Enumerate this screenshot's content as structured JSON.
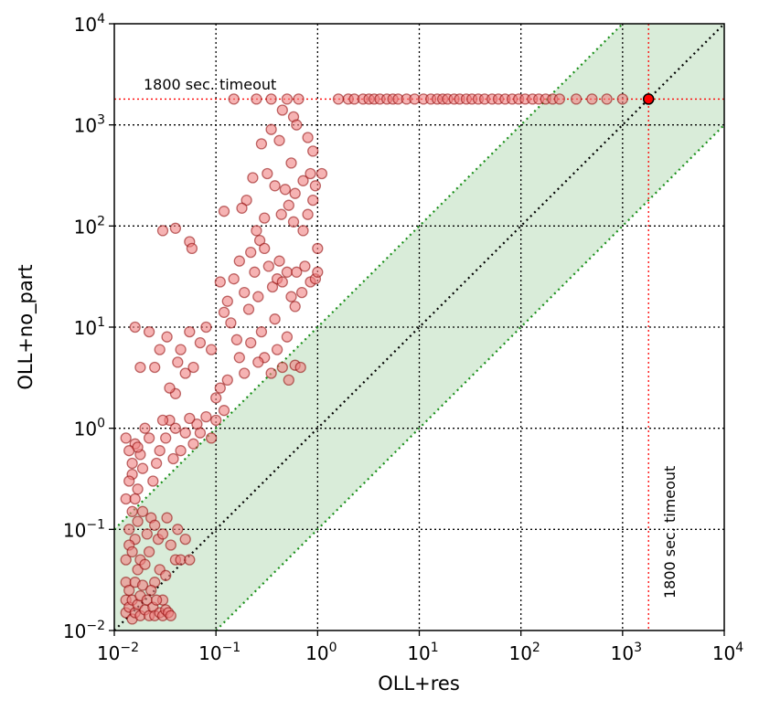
{
  "chart_data": {
    "type": "scatter",
    "title": "",
    "xlabel": "OLL+res",
    "ylabel": "OLL+no_part",
    "x_scale": "log",
    "y_scale": "log",
    "xlim": [
      0.01,
      10000
    ],
    "ylim": [
      0.01,
      10000
    ],
    "grid": true,
    "x_ticks": [
      {
        "base": "10",
        "exp": "−2"
      },
      {
        "base": "10",
        "exp": "−1"
      },
      {
        "base": "10",
        "exp": "0"
      },
      {
        "base": "10",
        "exp": "1"
      },
      {
        "base": "10",
        "exp": "2"
      },
      {
        "base": "10",
        "exp": "3"
      },
      {
        "base": "10",
        "exp": "4"
      }
    ],
    "y_ticks": [
      {
        "base": "10",
        "exp": "−2"
      },
      {
        "base": "10",
        "exp": "−1"
      },
      {
        "base": "10",
        "exp": "0"
      },
      {
        "base": "10",
        "exp": "1"
      },
      {
        "base": "10",
        "exp": "2"
      },
      {
        "base": "10",
        "exp": "3"
      },
      {
        "base": "10",
        "exp": "4"
      }
    ],
    "timeout_value": 1800,
    "timeout_label_h": "1800 sec. timeout",
    "timeout_label_v": "1800 sec. timeout",
    "diagonal_band_factor": 10,
    "colors": {
      "points_fill": "#f08080",
      "points_edge": "#8b0000",
      "band_fill": "#d9ecd9",
      "band_line": "#1a8f1a",
      "diagonal": "#000000",
      "timeout_line": "#ff0000",
      "grid": "#000000"
    },
    "points": [
      [
        1800,
        1800
      ],
      [
        1.6,
        1800
      ],
      [
        2,
        1800
      ],
      [
        2.3,
        1800
      ],
      [
        2.8,
        1800
      ],
      [
        3.2,
        1800
      ],
      [
        3.6,
        1800
      ],
      [
        4.1,
        1800
      ],
      [
        4.8,
        1800
      ],
      [
        5.5,
        1800
      ],
      [
        6.2,
        1800
      ],
      [
        7.5,
        1800
      ],
      [
        9,
        1800
      ],
      [
        11,
        1800
      ],
      [
        13,
        1800
      ],
      [
        15,
        1800
      ],
      [
        17,
        1800
      ],
      [
        19,
        1800
      ],
      [
        22,
        1800
      ],
      [
        25,
        1800
      ],
      [
        29,
        1800
      ],
      [
        33,
        1800
      ],
      [
        38,
        1800
      ],
      [
        44,
        1800
      ],
      [
        52,
        1800
      ],
      [
        60,
        1800
      ],
      [
        70,
        1800
      ],
      [
        82,
        1800
      ],
      [
        95,
        1800
      ],
      [
        110,
        1800
      ],
      [
        130,
        1800
      ],
      [
        150,
        1800
      ],
      [
        175,
        1800
      ],
      [
        205,
        1800
      ],
      [
        240,
        1800
      ],
      [
        350,
        1800
      ],
      [
        500,
        1800
      ],
      [
        700,
        1800
      ],
      [
        1000,
        1800
      ],
      [
        0.15,
        1800
      ],
      [
        0.25,
        1800
      ],
      [
        0.35,
        1800
      ],
      [
        0.5,
        1800
      ],
      [
        0.65,
        1800
      ],
      [
        0.45,
        1400
      ],
      [
        0.58,
        1200
      ],
      [
        0.35,
        900
      ],
      [
        0.28,
        650
      ],
      [
        0.42,
        700
      ],
      [
        0.62,
        1000
      ],
      [
        0.8,
        750
      ],
      [
        0.9,
        550
      ],
      [
        0.55,
        420
      ],
      [
        0.32,
        330
      ],
      [
        0.23,
        300
      ],
      [
        0.2,
        180
      ],
      [
        0.38,
        250
      ],
      [
        0.48,
        230
      ],
      [
        0.6,
        210
      ],
      [
        0.72,
        280
      ],
      [
        0.85,
        330
      ],
      [
        0.95,
        250
      ],
      [
        1.1,
        330
      ],
      [
        0.52,
        160
      ],
      [
        0.44,
        130
      ],
      [
        0.3,
        120
      ],
      [
        0.12,
        140
      ],
      [
        0.18,
        150
      ],
      [
        0.25,
        90
      ],
      [
        0.27,
        72
      ],
      [
        0.3,
        60
      ],
      [
        0.22,
        55
      ],
      [
        0.17,
        45
      ],
      [
        0.15,
        30
      ],
      [
        0.11,
        28
      ],
      [
        0.13,
        18
      ],
      [
        0.12,
        14
      ],
      [
        0.14,
        11
      ],
      [
        0.19,
        22
      ],
      [
        0.21,
        15
      ],
      [
        0.24,
        35
      ],
      [
        0.26,
        20
      ],
      [
        0.33,
        40
      ],
      [
        0.36,
        25
      ],
      [
        0.4,
        30
      ],
      [
        0.42,
        45
      ],
      [
        0.45,
        28
      ],
      [
        0.5,
        35
      ],
      [
        0.55,
        20
      ],
      [
        0.6,
        16
      ],
      [
        0.62,
        35
      ],
      [
        0.7,
        22
      ],
      [
        0.75,
        40
      ],
      [
        0.85,
        28
      ],
      [
        0.95,
        30
      ],
      [
        1.0,
        60
      ],
      [
        1.0,
        35
      ],
      [
        0.58,
        110
      ],
      [
        0.72,
        90
      ],
      [
        0.8,
        130
      ],
      [
        0.9,
        180
      ],
      [
        0.28,
        9
      ],
      [
        0.3,
        5
      ],
      [
        0.35,
        3.5
      ],
      [
        0.4,
        6
      ],
      [
        0.45,
        4
      ],
      [
        0.52,
        3
      ],
      [
        0.6,
        4.2
      ],
      [
        0.68,
        4
      ],
      [
        0.5,
        8
      ],
      [
        0.38,
        12
      ],
      [
        0.26,
        4.5
      ],
      [
        0.22,
        7
      ],
      [
        0.19,
        3.5
      ],
      [
        0.17,
        5
      ],
      [
        0.16,
        7.5
      ],
      [
        0.13,
        3
      ],
      [
        0.11,
        2.5
      ],
      [
        0.1,
        2
      ],
      [
        0.09,
        6
      ],
      [
        0.08,
        10
      ],
      [
        0.07,
        7
      ],
      [
        0.06,
        4
      ],
      [
        0.05,
        3.5
      ],
      [
        0.055,
        9
      ],
      [
        0.045,
        6
      ],
      [
        0.04,
        2.2
      ],
      [
        0.042,
        4.5
      ],
      [
        0.035,
        2.5
      ],
      [
        0.033,
        8
      ],
      [
        0.028,
        6
      ],
      [
        0.025,
        4
      ],
      [
        0.022,
        9
      ],
      [
        0.018,
        4
      ],
      [
        0.016,
        10
      ],
      [
        0.03,
        90
      ],
      [
        0.04,
        95
      ],
      [
        0.055,
        70
      ],
      [
        0.058,
        60
      ],
      [
        0.12,
        1.5
      ],
      [
        0.1,
        1.2
      ],
      [
        0.09,
        0.8
      ],
      [
        0.08,
        1.3
      ],
      [
        0.07,
        0.9
      ],
      [
        0.065,
        1.1
      ],
      [
        0.06,
        0.7
      ],
      [
        0.055,
        1.25
      ],
      [
        0.05,
        0.9
      ],
      [
        0.045,
        0.6
      ],
      [
        0.04,
        1.0
      ],
      [
        0.038,
        0.5
      ],
      [
        0.035,
        1.2
      ],
      [
        0.032,
        0.8
      ],
      [
        0.03,
        1.2
      ],
      [
        0.028,
        0.6
      ],
      [
        0.026,
        0.45
      ],
      [
        0.024,
        0.3
      ],
      [
        0.022,
        0.8
      ],
      [
        0.02,
        1.0
      ],
      [
        0.019,
        0.4
      ],
      [
        0.018,
        0.55
      ],
      [
        0.017,
        0.25
      ],
      [
        0.016,
        0.7
      ],
      [
        0.015,
        0.35
      ],
      [
        0.015,
        0.15
      ],
      [
        0.014,
        0.6
      ],
      [
        0.014,
        0.1
      ],
      [
        0.013,
        0.2
      ],
      [
        0.013,
        0.8
      ],
      [
        0.016,
        0.08
      ],
      [
        0.017,
        0.12
      ],
      [
        0.018,
        0.05
      ],
      [
        0.019,
        0.15
      ],
      [
        0.021,
        0.09
      ],
      [
        0.022,
        0.06
      ],
      [
        0.023,
        0.13
      ],
      [
        0.025,
        0.11
      ],
      [
        0.027,
        0.08
      ],
      [
        0.03,
        0.09
      ],
      [
        0.033,
        0.13
      ],
      [
        0.036,
        0.07
      ],
      [
        0.04,
        0.05
      ],
      [
        0.042,
        0.1
      ],
      [
        0.045,
        0.05
      ],
      [
        0.05,
        0.08
      ],
      [
        0.055,
        0.05
      ],
      [
        0.025,
        0.03
      ],
      [
        0.028,
        0.04
      ],
      [
        0.03,
        0.02
      ],
      [
        0.032,
        0.035
      ],
      [
        0.013,
        0.03
      ],
      [
        0.013,
        0.02
      ],
      [
        0.013,
        0.015
      ],
      [
        0.014,
        0.017
      ],
      [
        0.014,
        0.025
      ],
      [
        0.015,
        0.013
      ],
      [
        0.015,
        0.02
      ],
      [
        0.016,
        0.015
      ],
      [
        0.016,
        0.03
      ],
      [
        0.017,
        0.018
      ],
      [
        0.017,
        0.04
      ],
      [
        0.018,
        0.022
      ],
      [
        0.018,
        0.014
      ],
      [
        0.019,
        0.028
      ],
      [
        0.02,
        0.016
      ],
      [
        0.02,
        0.045
      ],
      [
        0.021,
        0.02
      ],
      [
        0.022,
        0.014
      ],
      [
        0.023,
        0.025
      ],
      [
        0.024,
        0.017
      ],
      [
        0.025,
        0.014
      ],
      [
        0.026,
        0.02
      ],
      [
        0.028,
        0.015
      ],
      [
        0.03,
        0.014
      ],
      [
        0.032,
        0.016
      ],
      [
        0.034,
        0.015
      ],
      [
        0.036,
        0.014
      ],
      [
        0.013,
        0.05
      ],
      [
        0.014,
        0.07
      ],
      [
        0.015,
        0.06
      ],
      [
        0.014,
        0.3
      ],
      [
        0.015,
        0.45
      ],
      [
        0.016,
        0.2
      ],
      [
        0.017,
        0.65
      ]
    ]
  }
}
